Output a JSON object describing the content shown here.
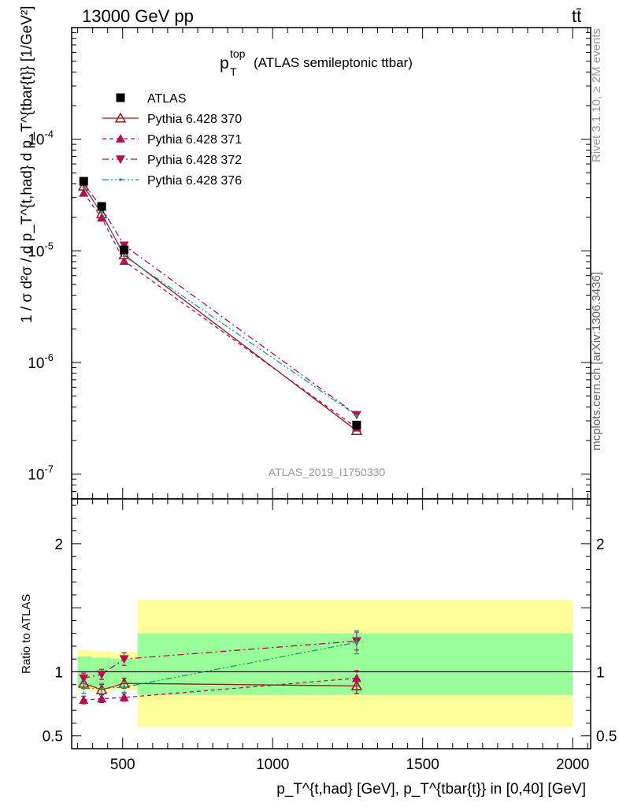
{
  "header": {
    "left": "13000 GeV pp",
    "right": "tt̄"
  },
  "side_labels": {
    "rivet": "Rivet 3.1.10, ≥ 2M events",
    "mcplots": "mcplots.cern.ch [arXiv:1306.3436]"
  },
  "chart_data": [
    {
      "type": "scatter",
      "title": "p_T^top (ATLAS semileptonic ttbar)",
      "title_main": "p",
      "title_sub": "T",
      "title_sup": "top",
      "title_rest": "(ATLAS semileptonic ttbar)",
      "analysis_tag": "ATLAS_2019_I1750330",
      "ylabel": "1 / σ d²σ / d p_T^{t,had} d p_T^{tbar{t}} [1/GeV²]",
      "yscale": "log",
      "ylim": [
        6e-08,
        0.001
      ],
      "xlim": [
        330,
        2060
      ],
      "y_tick_labels": [
        "10^-7",
        "10^-6",
        "10^-5",
        "10^-4"
      ],
      "legend_position": "top-left",
      "series": [
        {
          "name": "ATLAS",
          "style": "data",
          "color": "#000000",
          "x": [
            370,
            430,
            505,
            1280
          ],
          "y": [
            4.2e-05,
            2.5e-05,
            1.02e-05,
            2.75e-07
          ]
        },
        {
          "name": "Pythia 6.428 370",
          "style": "solid",
          "marker": "open-triangle-up",
          "color": "#8b1a1a",
          "x": [
            370,
            430,
            505,
            1280
          ],
          "y": [
            3.8e-05,
            2.15e-05,
            9.2e-06,
            2.45e-07
          ]
        },
        {
          "name": "Pythia 6.428 371",
          "style": "dashed",
          "marker": "triangle-up",
          "color": "#b0104e",
          "x": [
            370,
            430,
            505,
            1280
          ],
          "y": [
            3.3e-05,
            1.98e-05,
            8.1e-06,
            2.6e-07
          ]
        },
        {
          "name": "Pythia 6.428 372",
          "style": "dashdot",
          "marker": "triangle-down",
          "color": "#b0104e",
          "x": [
            370,
            430,
            505,
            1280
          ],
          "y": [
            4e-05,
            2.42e-05,
            1.12e-05,
            3.4e-07
          ]
        },
        {
          "name": "Pythia 6.428 376",
          "style": "dashdotdot",
          "marker": "point",
          "color": "#199a7f",
          "x": [
            370,
            430,
            505,
            1280
          ],
          "y": [
            3.7e-05,
            2.2e-05,
            9e-06,
            3.35e-07
          ]
        }
      ]
    },
    {
      "type": "scatter",
      "ylabel": "Ratio to ATLAS",
      "xlabel": "p_T^{t,had} [GeV], p_T^{tbar{t}} in [0,40] [GeV]",
      "xlabel_rest": "in [0,40] [GeV]",
      "yscale": "linear",
      "ylim": [
        0.4,
        2.35
      ],
      "xlim": [
        330,
        2060
      ],
      "y_ticks": [
        0.5,
        1,
        2
      ],
      "y_tick_labels": [
        "0.5",
        "1",
        "2"
      ],
      "x_ticks": [
        500,
        1000,
        1500,
        2000
      ],
      "x_tick_labels": [
        "500",
        "1000",
        "1500",
        "2000"
      ],
      "uncertainty_bands": {
        "bins": [
          [
            350,
            400
          ],
          [
            400,
            460
          ],
          [
            460,
            550
          ],
          [
            550,
            2000
          ]
        ],
        "inner": [
          [
            0.89,
            1.12
          ],
          [
            0.88,
            1.11
          ],
          [
            0.9,
            1.1
          ],
          [
            0.82,
            1.3
          ]
        ],
        "outer": [
          [
            0.86,
            1.17
          ],
          [
            0.85,
            1.16
          ],
          [
            0.86,
            1.15
          ],
          [
            0.57,
            1.56
          ]
        ],
        "inner_color": "#99ff99",
        "outer_color": "#ffff99"
      },
      "series": [
        {
          "name": "Pythia 6.428 370",
          "x": [
            370,
            430,
            505,
            1280
          ],
          "y": [
            0.91,
            0.86,
            0.91,
            0.89
          ],
          "err": [
            0.04,
            0.04,
            0.04,
            0.06
          ]
        },
        {
          "name": "Pythia 6.428 371",
          "x": [
            370,
            430,
            505,
            1280
          ],
          "y": [
            0.78,
            0.79,
            0.8,
            0.95
          ],
          "err": [
            0.03,
            0.03,
            0.03,
            0.06
          ]
        },
        {
          "name": "Pythia 6.428 372",
          "x": [
            370,
            430,
            505,
            1280
          ],
          "y": [
            0.95,
            0.98,
            1.1,
            1.24
          ],
          "err": [
            0.04,
            0.04,
            0.05,
            0.07
          ]
        },
        {
          "name": "Pythia 6.428 376",
          "x": [
            370,
            430,
            505,
            1280
          ],
          "y": [
            0.87,
            0.87,
            0.88,
            1.23
          ],
          "err": [
            0.04,
            0.04,
            0.04,
            0.09
          ]
        }
      ]
    }
  ]
}
